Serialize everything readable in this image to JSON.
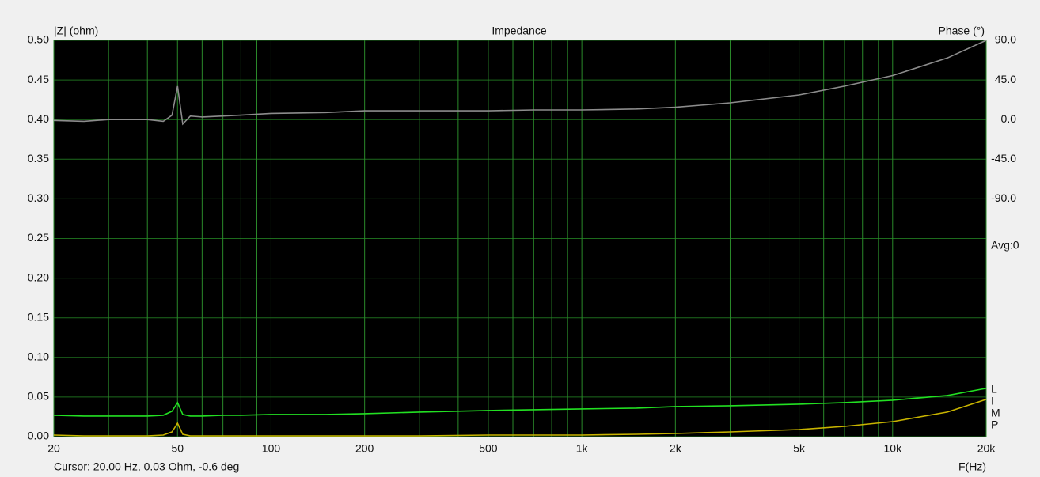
{
  "chart_data": {
    "type": "line",
    "title": "Impedance",
    "y_label": "|Z| (ohm)",
    "y2_label": "Phase (°)",
    "x_label": "F(Hz)",
    "status": "Cursor: 20.00 Hz, 0.03 Ohm, -0.6 deg",
    "annotation": "Avg:0",
    "trace_labels": [
      "L",
      "I",
      "M",
      "P"
    ],
    "log_x": true,
    "grid": true,
    "xlim": [
      20,
      20000
    ],
    "xticks": [
      20,
      {
        "value": 30,
        "label": null
      },
      {
        "value": 40,
        "label": null
      },
      50,
      {
        "value": 60,
        "label": null
      },
      {
        "value": 70,
        "label": null
      },
      {
        "value": 80,
        "label": null
      },
      {
        "value": 90,
        "label": null
      },
      100,
      200,
      {
        "value": 300,
        "label": null
      },
      {
        "value": 400,
        "label": null
      },
      500,
      {
        "value": 600,
        "label": null
      },
      {
        "value": 700,
        "label": null
      },
      {
        "value": 800,
        "label": null
      },
      {
        "value": 900,
        "label": null
      },
      {
        "value": 1000,
        "label": "1k"
      },
      {
        "value": 2000,
        "label": "2k"
      },
      {
        "value": 3000,
        "label": null
      },
      {
        "value": 4000,
        "label": null
      },
      {
        "value": 5000,
        "label": "5k"
      },
      {
        "value": 6000,
        "label": null
      },
      {
        "value": 7000,
        "label": null
      },
      {
        "value": 8000,
        "label": null
      },
      {
        "value": 9000,
        "label": null
      },
      {
        "value": 10000,
        "label": "10k"
      },
      {
        "value": 20000,
        "label": "20k"
      }
    ],
    "ylim": [
      0,
      0.5
    ],
    "yticks": [
      {
        "value": 0,
        "label": "0.00"
      },
      0.05,
      {
        "value": 0.1,
        "label": "0.10"
      },
      0.15,
      {
        "value": 0.2,
        "label": "0.20"
      },
      0.25,
      {
        "value": 0.3,
        "label": "0.30"
      },
      0.35,
      {
        "value": 0.4,
        "label": "0.40"
      },
      0.45,
      {
        "value": 0.5,
        "label": "0.50"
      }
    ],
    "y2lim": [
      -360,
      90
    ],
    "y2ticks": [
      {
        "value": 90,
        "label": "90.0"
      },
      {
        "value": 45,
        "label": "45.0"
      },
      {
        "value": 0,
        "label": "0.0"
      },
      {
        "value": -45,
        "label": "-45.0"
      },
      {
        "value": -90,
        "label": "-90.0"
      }
    ],
    "x": [
      20,
      25,
      30,
      40,
      45,
      48,
      50,
      52,
      55,
      60,
      70,
      80,
      100,
      150,
      200,
      300,
      500,
      700,
      1000,
      1500,
      2000,
      3000,
      5000,
      7000,
      10000,
      15000,
      20000
    ],
    "series": [
      {
        "color": "#8c8c8c",
        "axis": "y2",
        "values": [
          -1,
          -2,
          0,
          0,
          -2,
          5,
          38,
          -5,
          4,
          3,
          4,
          5,
          7,
          8,
          10,
          10,
          10,
          11,
          11,
          12,
          14,
          19,
          28,
          38,
          50,
          70,
          90
        ]
      },
      {
        "color": "#22e022",
        "values": [
          0.027,
          0.026,
          0.026,
          0.026,
          0.027,
          0.032,
          0.043,
          0.028,
          0.026,
          0.026,
          0.027,
          0.027,
          0.028,
          0.028,
          0.029,
          0.031,
          0.033,
          0.034,
          0.035,
          0.036,
          0.038,
          0.039,
          0.041,
          0.043,
          0.046,
          0.052,
          0.061
        ]
      },
      {
        "color": "#c8b400",
        "values": [
          0.002,
          0.001,
          0.001,
          0.001,
          0.002,
          0.006,
          0.017,
          0.003,
          0.001,
          0.001,
          0.001,
          0.001,
          0.001,
          0.001,
          0.001,
          0.001,
          0.002,
          0.002,
          0.002,
          0.003,
          0.004,
          0.006,
          0.009,
          0.013,
          0.019,
          0.031,
          0.047
        ]
      }
    ]
  }
}
